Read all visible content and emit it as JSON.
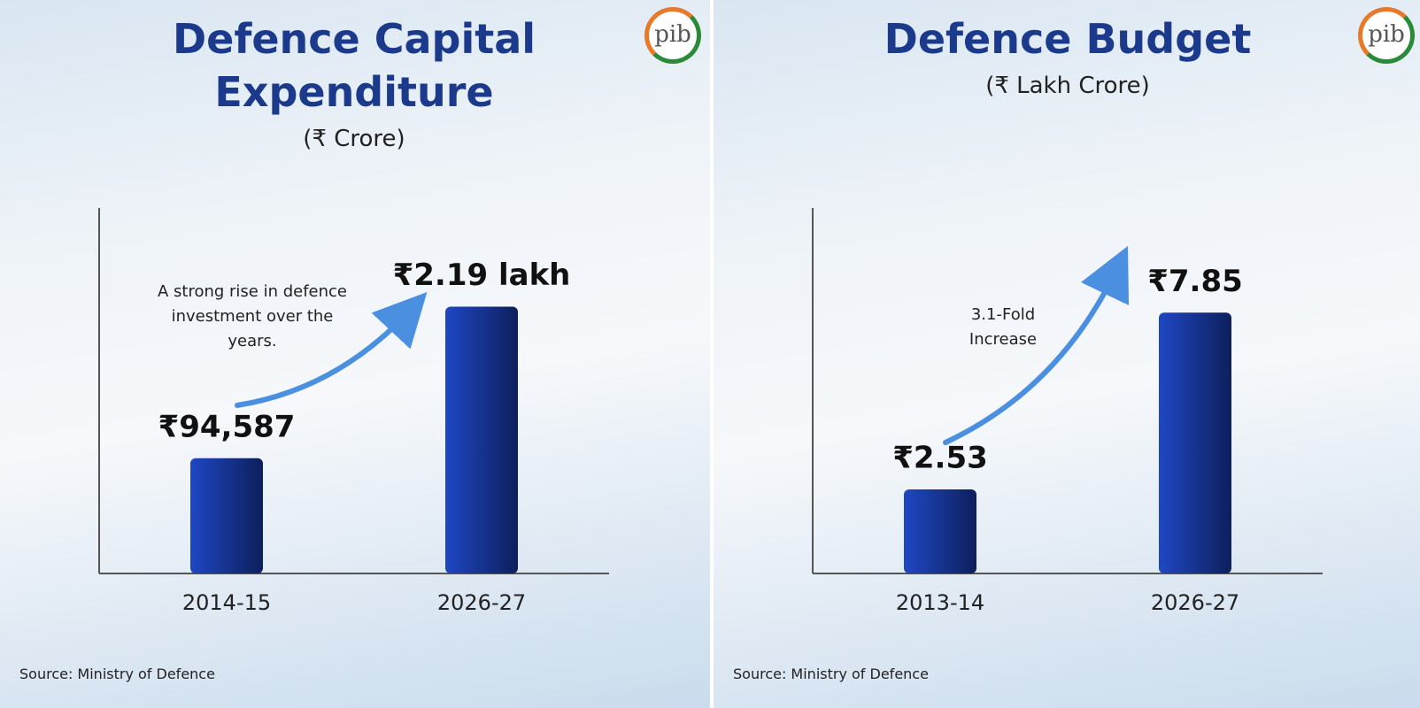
{
  "chart_data": [
    {
      "type": "bar",
      "logo": "pib",
      "title": "Defence Capital Expenditure",
      "subtitle": "(₹ Crore)",
      "categories": [
        "2014-15",
        "2026-27"
      ],
      "values": [
        94587,
        219000
      ],
      "value_labels": [
        "₹94,587",
        "₹2.19 lakh"
      ],
      "ylim": [
        0,
        300000
      ],
      "annotation": "A strong rise in defence investment over the years.",
      "source": "Source: Ministry of Defence",
      "color": "#1f47c4"
    },
    {
      "type": "bar",
      "logo": "pib",
      "title": "Defence Budget",
      "subtitle": "(₹ Lakh Crore)",
      "categories": [
        "2013-14",
        "2026-27"
      ],
      "values": [
        2.53,
        7.85
      ],
      "value_labels": [
        "₹2.53",
        "₹7.85"
      ],
      "ylim": [
        0,
        11
      ],
      "annotation": "3.1-Fold Increase",
      "source": "Source: Ministry of Defence",
      "color": "#1f47c4"
    }
  ]
}
